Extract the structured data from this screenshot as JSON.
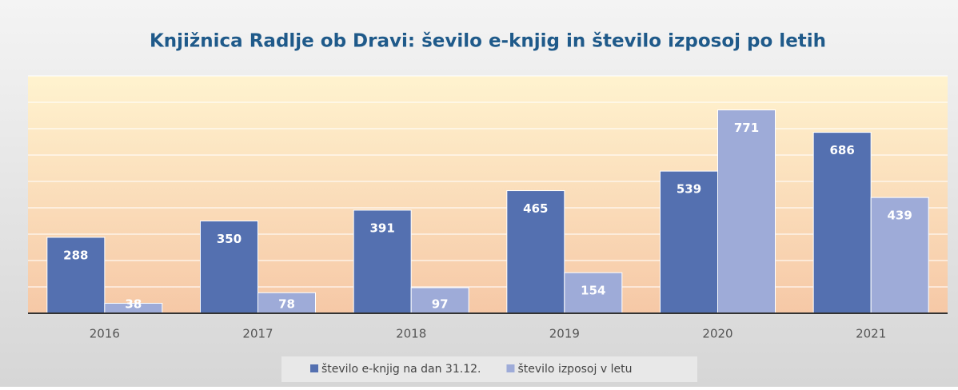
{
  "chart_data": {
    "type": "bar",
    "title": "Knjižnica Radlje ob Dravi: ševilo e-knjig in število izposoj po letih",
    "categories": [
      "2016",
      "2017",
      "2018",
      "2019",
      "2020",
      "2021"
    ],
    "series": [
      {
        "name": "število e-knjig na dan 31.12.",
        "color": "#5470b0",
        "values": [
          288,
          350,
          391,
          465,
          539,
          686
        ]
      },
      {
        "name": "število izposoj v letu",
        "color": "#9eabd8",
        "values": [
          38,
          78,
          97,
          154,
          771,
          439
        ]
      }
    ],
    "ylim": [
      0,
      900
    ],
    "yticks": [
      0,
      100,
      200,
      300,
      400,
      500,
      600,
      700,
      800,
      900
    ],
    "grid": true,
    "legend": "bottom"
  }
}
